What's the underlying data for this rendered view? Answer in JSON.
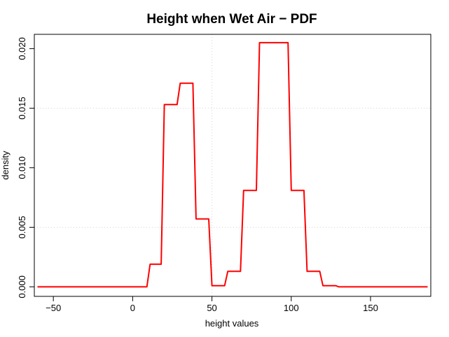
{
  "chart_data": {
    "type": "line",
    "title": "Height when Wet Air − PDF",
    "xlabel": "height values",
    "ylabel": "density",
    "xlim": [
      -62,
      188
    ],
    "ylim": [
      -0.0008,
      0.0212
    ],
    "xticks": [
      -50,
      0,
      50,
      100,
      150
    ],
    "xtick_labels": [
      "−50",
      "0",
      "50",
      "100",
      "150"
    ],
    "yticks": [
      0.0,
      0.005,
      0.01,
      0.015,
      0.02
    ],
    "ytick_labels": [
      "0.000",
      "0.005",
      "0.010",
      "0.015",
      "0.020"
    ],
    "grid": true,
    "grid_lines": {
      "x": [
        50
      ],
      "y": [
        0.015,
        0.005
      ]
    },
    "line_color": "#ff0000",
    "series": [
      {
        "x": [
          -60,
          9,
          11,
          18,
          20,
          28,
          30,
          38,
          40,
          48,
          50,
          58,
          60,
          68,
          70,
          78,
          80,
          98,
          100,
          108,
          110,
          118,
          120,
          128,
          130,
          186
        ],
        "y": [
          0.0,
          0.0,
          0.0019,
          0.0019,
          0.0153,
          0.0153,
          0.0171,
          0.0171,
          0.0057,
          0.0057,
          0.0001,
          0.0001,
          0.0013,
          0.0013,
          0.0081,
          0.0081,
          0.0205,
          0.0205,
          0.0081,
          0.0081,
          0.0013,
          0.0013,
          0.0001,
          0.0001,
          0.0,
          0.0
        ]
      }
    ]
  }
}
